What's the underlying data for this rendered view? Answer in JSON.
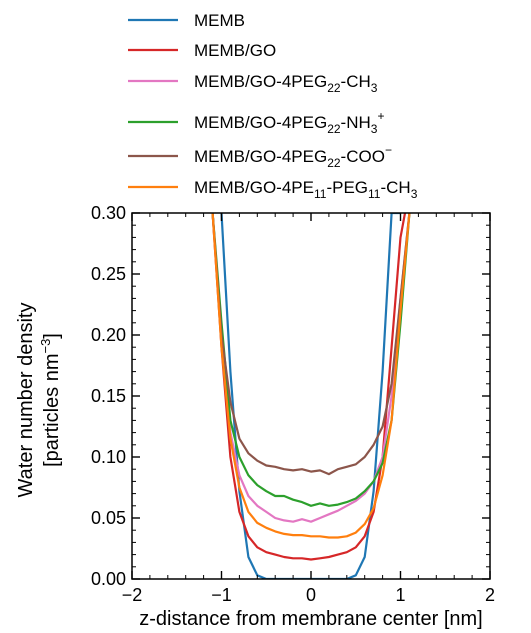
{
  "chart_data": {
    "type": "line",
    "title": "",
    "xlabel": "z-distance from membrane center [nm]",
    "ylabel": "Water number density [particles nm^-3]",
    "ylabel_line1": "Water number density",
    "ylabel_line2": "[particles nm",
    "ylabel_sup": "−3",
    "ylabel_close": "]",
    "xlim": [
      -2,
      2
    ],
    "ylim": [
      0.0,
      0.3
    ],
    "x_ticks": [
      -2,
      -1,
      0,
      1,
      2
    ],
    "x_tick_labels": [
      "−2",
      "−1",
      "0",
      "1",
      "2"
    ],
    "y_ticks": [
      0.0,
      0.05,
      0.1,
      0.15,
      0.2,
      0.25,
      0.3
    ],
    "y_tick_labels": [
      "0.00",
      "0.05",
      "0.10",
      "0.15",
      "0.20",
      "0.25",
      "0.30"
    ],
    "grid": false,
    "legend_position": "above plot",
    "series": [
      {
        "name": "MEMB",
        "legend": {
          "text": "MEMB"
        },
        "color": "#1f77b4",
        "x": [
          -1.0,
          -0.9,
          -0.8,
          -0.7,
          -0.6,
          -0.5,
          -0.4,
          -0.3,
          -0.2,
          -0.1,
          0.0,
          0.1,
          0.2,
          0.3,
          0.4,
          0.5,
          0.6,
          0.7,
          0.8,
          0.9,
          1.0
        ],
        "y": [
          0.3,
          0.17,
          0.072,
          0.018,
          0.003,
          0.0,
          0.0,
          0.0,
          0.0,
          0.0,
          0.0,
          0.0,
          0.0,
          0.0,
          0.0,
          0.003,
          0.018,
          0.072,
          0.17,
          0.3,
          0.3
        ]
      },
      {
        "name": "MEMB/GO",
        "legend": {
          "text": "MEMB/GO"
        },
        "color": "#d62728",
        "x": [
          -1.1,
          -1.0,
          -0.9,
          -0.8,
          -0.7,
          -0.6,
          -0.5,
          -0.4,
          -0.3,
          -0.2,
          -0.1,
          0.0,
          0.1,
          0.2,
          0.3,
          0.4,
          0.5,
          0.6,
          0.7,
          0.8,
          0.9,
          1.0,
          1.05
        ],
        "y": [
          0.3,
          0.19,
          0.1,
          0.055,
          0.035,
          0.026,
          0.022,
          0.02,
          0.018,
          0.017,
          0.017,
          0.016,
          0.017,
          0.018,
          0.02,
          0.022,
          0.026,
          0.035,
          0.055,
          0.1,
          0.19,
          0.28,
          0.3
        ]
      },
      {
        "name": "MEMB/GO-4PEG22-CH3",
        "legend": {
          "main": "MEMB/GO-4PEG",
          "sub1": "22",
          "mid": "-CH",
          "sub2": "3",
          "sup": "",
          "tail": ""
        },
        "color": "#e377c2",
        "x": [
          -1.1,
          -1.0,
          -0.9,
          -0.8,
          -0.7,
          -0.6,
          -0.5,
          -0.4,
          -0.3,
          -0.2,
          -0.1,
          0.0,
          0.1,
          0.2,
          0.3,
          0.4,
          0.5,
          0.6,
          0.7,
          0.8,
          0.9,
          1.0,
          1.1
        ],
        "y": [
          0.3,
          0.2,
          0.12,
          0.085,
          0.068,
          0.06,
          0.055,
          0.05,
          0.048,
          0.047,
          0.049,
          0.047,
          0.05,
          0.053,
          0.056,
          0.06,
          0.064,
          0.07,
          0.08,
          0.1,
          0.15,
          0.23,
          0.3
        ]
      },
      {
        "name": "MEMB/GO-4PEG22-NH3+",
        "legend": {
          "main": "MEMB/GO-4PEG",
          "sub1": "22",
          "mid": "-NH",
          "sub2": "3",
          "sup": "+",
          "tail": ""
        },
        "color": "#2ca02c",
        "x": [
          -1.1,
          -1.0,
          -0.9,
          -0.8,
          -0.7,
          -0.6,
          -0.5,
          -0.4,
          -0.3,
          -0.2,
          -0.1,
          0.0,
          0.1,
          0.2,
          0.3,
          0.4,
          0.5,
          0.6,
          0.7,
          0.8,
          0.9,
          1.0,
          1.1
        ],
        "y": [
          0.3,
          0.21,
          0.13,
          0.1,
          0.085,
          0.077,
          0.072,
          0.068,
          0.068,
          0.065,
          0.063,
          0.06,
          0.062,
          0.06,
          0.061,
          0.063,
          0.066,
          0.072,
          0.08,
          0.095,
          0.13,
          0.21,
          0.3
        ]
      },
      {
        "name": "MEMB/GO-4PEG22-COO−",
        "legend": {
          "main": "MEMB/GO-4PEG",
          "sub1": "22",
          "mid": "-COO",
          "sub2": "",
          "sup": "−",
          "tail": ""
        },
        "color": "#8c564b",
        "x": [
          -1.1,
          -1.0,
          -0.9,
          -0.8,
          -0.7,
          -0.6,
          -0.5,
          -0.4,
          -0.3,
          -0.2,
          -0.1,
          0.0,
          0.1,
          0.2,
          0.3,
          0.4,
          0.5,
          0.6,
          0.7,
          0.8,
          0.9,
          1.0,
          1.1
        ],
        "y": [
          0.3,
          0.2,
          0.145,
          0.115,
          0.103,
          0.097,
          0.093,
          0.092,
          0.09,
          0.089,
          0.09,
          0.088,
          0.089,
          0.086,
          0.09,
          0.092,
          0.094,
          0.1,
          0.11,
          0.125,
          0.16,
          0.23,
          0.3
        ]
      },
      {
        "name": "MEMB/GO-4PE11-PEG11-CH3",
        "legend": {
          "main": "MEMB/GO-4PE",
          "sub1": "11",
          "mid": "-PEG",
          "sub2": "11",
          "mid2": "-CH",
          "sub3": "3"
        },
        "color": "#ff7f0e",
        "x": [
          -1.1,
          -1.0,
          -0.9,
          -0.8,
          -0.7,
          -0.6,
          -0.5,
          -0.4,
          -0.3,
          -0.2,
          -0.1,
          0.0,
          0.1,
          0.2,
          0.3,
          0.4,
          0.5,
          0.6,
          0.7,
          0.8,
          0.9,
          1.0,
          1.1
        ],
        "y": [
          0.3,
          0.19,
          0.115,
          0.075,
          0.055,
          0.046,
          0.042,
          0.039,
          0.037,
          0.036,
          0.036,
          0.035,
          0.035,
          0.034,
          0.034,
          0.035,
          0.038,
          0.045,
          0.058,
          0.085,
          0.13,
          0.22,
          0.3
        ]
      }
    ]
  }
}
